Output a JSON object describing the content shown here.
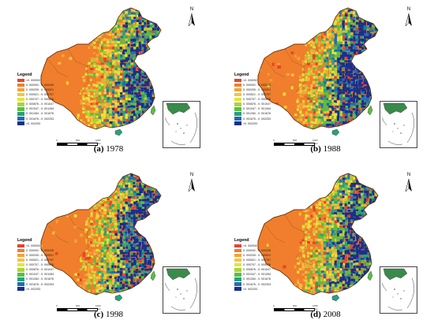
{
  "legend": {
    "title": "Legend",
    "items": [
      {
        "label": "<0. 000092",
        "color": "#e8432c"
      },
      {
        "label": "0. 000092 - 0. 000205",
        "color": "#f07e2c"
      },
      {
        "label": "0. 000205 - 0. 000521",
        "color": "#f5a23a"
      },
      {
        "label": "0. 000521 - 0. 000707",
        "color": "#f5c53c"
      },
      {
        "label": "0. 000707 - 0. 000876",
        "color": "#e6e33a"
      },
      {
        "label": "0. 000876 - 0. 001047",
        "color": "#a8d63c"
      },
      {
        "label": "0. 001047 - 0. 001284",
        "color": "#58c03e"
      },
      {
        "label": "0. 001284 - 0. 001676",
        "color": "#2aa07c"
      },
      {
        "label": "0. 001676 - 0. 002253",
        "color": "#1f6fb0"
      },
      {
        "label": ">0. 002253",
        "color": "#1a2f8a"
      }
    ]
  },
  "north_arrow": {
    "letter": "N",
    "icon": "north-arrow-icon"
  },
  "scale": {
    "ticks": [
      "0",
      "500",
      "1000"
    ],
    "unit": "km"
  },
  "panels": [
    {
      "label": "(a)",
      "year": "1978",
      "density": 0.42
    },
    {
      "label": "(b)",
      "year": "1988",
      "density": 0.62
    },
    {
      "label": "(c)",
      "year": "1998",
      "density": 0.55
    },
    {
      "label": "(d)",
      "year": "2008",
      "density": 0.5
    }
  ]
}
